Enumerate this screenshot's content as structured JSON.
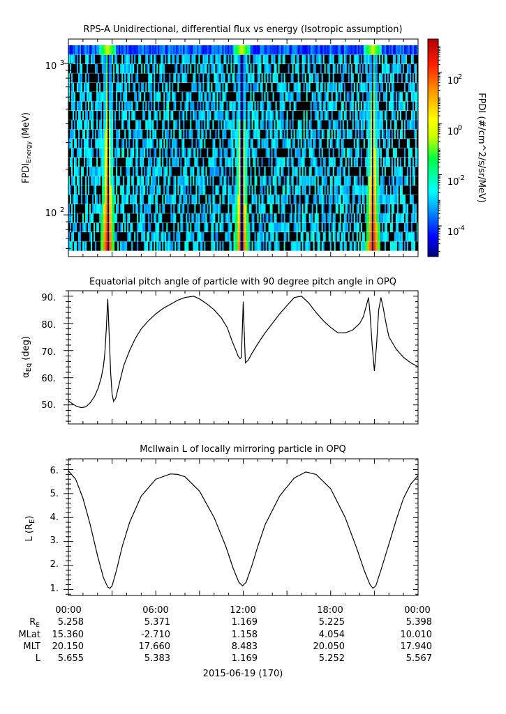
{
  "panel1": {
    "title": "RPS-A Unidirectional, differential flux vs energy (Isotropic assumption)",
    "ylabel_main": "FPDI",
    "ylabel_sub": "Energy",
    "ylabel_unit": "(MeV)",
    "ytick_labels": [
      {
        "base": "10",
        "exp": "3",
        "value": 1000
      },
      {
        "base": "10",
        "exp": "2",
        "value": 100
      }
    ],
    "colorbar": {
      "label": "FPDI (#/cm^2/s/sr/MeV)",
      "tick_labels": [
        {
          "base": "10",
          "exp": "2",
          "value": 100
        },
        {
          "base": "10",
          "exp": "0",
          "value": 1
        },
        {
          "base": "10",
          "exp": "-2",
          "value": 0.01
        },
        {
          "base": "10",
          "exp": "-4",
          "value": 0.0001
        }
      ],
      "colors": [
        "#000080",
        "#0000ff",
        "#00a0ff",
        "#00ffff",
        "#00ff40",
        "#c8ff00",
        "#ffff00",
        "#ffa000",
        "#ff2000",
        "#b00000"
      ]
    }
  },
  "panel2": {
    "title": "Equatorial pitch angle of particle with 90 degree pitch angle in OPQ",
    "ylabel_main": "α",
    "ylabel_sub": "Eq",
    "ylabel_unit": "(deg)",
    "ytick_labels": [
      "90.",
      "80.",
      "70.",
      "60.",
      "50."
    ]
  },
  "panel3": {
    "title": "McIlwain L of locally mirroring particle in OPQ",
    "ylabel_main": "L (R",
    "ylabel_sub": "E",
    "ylabel_close": ")",
    "ytick_labels": [
      "6.",
      "5.",
      "4.",
      "3.",
      "2.",
      "1."
    ]
  },
  "xaxis": {
    "tick_labels": [
      "00:00",
      "06:00",
      "12:00",
      "18:00",
      "00:00"
    ],
    "date_label": "2015-06-19 (170)"
  },
  "ephemeris": {
    "rows": [
      {
        "name": "R",
        "sub": "E",
        "values": [
          "5.258",
          "5.371",
          "1.169",
          "5.225",
          "5.398"
        ]
      },
      {
        "name": "MLat",
        "sub": "",
        "values": [
          "15.360",
          "-2.710",
          "1.158",
          "4.054",
          "10.010"
        ]
      },
      {
        "name": "MLT",
        "sub": "",
        "values": [
          "20.150",
          "17.660",
          "8.483",
          "20.050",
          "17.940"
        ]
      },
      {
        "name": "L",
        "sub": "",
        "values": [
          "5.655",
          "5.383",
          "1.169",
          "5.252",
          "5.567"
        ]
      }
    ]
  },
  "chart_data": [
    {
      "type": "heatmap",
      "title": "RPS-A Unidirectional, differential flux vs energy (Isotropic assumption)",
      "xlabel": "",
      "ylabel": "FPDI Energy (MeV)",
      "y_scale": "log",
      "ylim": [
        53,
        1450
      ],
      "xlim_hours": [
        0,
        24
      ],
      "colorbar_label": "FPDI (#/cm^2/s/sr/MeV)",
      "colorbar_range_log10": [
        -5.2,
        3.3
      ],
      "perigee_hours": [
        2.7,
        11.9,
        20.9
      ],
      "bands": [
        {
          "center_hours": 2.7,
          "peak_log10_flux": 2.5
        },
        {
          "center_hours": 11.9,
          "peak_log10_flux": 2.3
        },
        {
          "center_hours": 20.9,
          "peak_log10_flux": 2.5
        }
      ]
    },
    {
      "type": "line",
      "title": "Equatorial pitch angle of particle with 90 degree pitch angle in OPQ",
      "ylabel": "αEq (deg)",
      "ylim": [
        43,
        92
      ],
      "xlim_hours": [
        0,
        24
      ],
      "series": [
        {
          "x": [
            0,
            0.3,
            0.6,
            0.9,
            1.2,
            1.5,
            1.8,
            2.05,
            2.25,
            2.4,
            2.5,
            2.6,
            2.7,
            2.8,
            2.9,
            3.0,
            3.1,
            3.25,
            3.5,
            3.8,
            4.2,
            4.6,
            5.0,
            5.5,
            6.0,
            6.5,
            7.0,
            7.5,
            8.0,
            8.6,
            9.0,
            9.5,
            10.0,
            10.5,
            10.9,
            11.2,
            11.5,
            11.65,
            11.78,
            11.87,
            11.95,
            12.0,
            12.05,
            12.15,
            12.35,
            12.6,
            13.0,
            13.5,
            14.0,
            14.5,
            15.0,
            15.5,
            16.0,
            16.5,
            17.0,
            17.5,
            18.0,
            18.5,
            19.0,
            19.5,
            20.0,
            20.25,
            20.45,
            20.6,
            20.7,
            20.85,
            21.0,
            21.15,
            21.3,
            21.45,
            21.6,
            21.8,
            22.0,
            22.5,
            23.0,
            23.5,
            24.0
          ],
          "y": [
            51.5,
            50.3,
            49.4,
            49.0,
            49.3,
            50.8,
            53.2,
            56.3,
            60.0,
            64.0,
            69.0,
            78.0,
            89.0,
            76.0,
            62.0,
            54.0,
            51.3,
            52.5,
            58.0,
            64.5,
            70.0,
            74.5,
            78.0,
            81.0,
            83.5,
            85.5,
            87.0,
            88.5,
            89.5,
            90.0,
            89.0,
            87.2,
            85.0,
            82.0,
            78.5,
            74.0,
            70.0,
            68.0,
            67.0,
            67.5,
            80.0,
            88.0,
            80.0,
            65.5,
            66.5,
            69.0,
            72.5,
            76.5,
            80.0,
            83.5,
            86.5,
            89.5,
            90.0,
            87.5,
            84.0,
            81.0,
            78.5,
            76.5,
            76.5,
            77.5,
            80.0,
            82.5,
            86.5,
            89.5,
            84.0,
            72.0,
            62.5,
            72.0,
            85.0,
            89.5,
            86.0,
            80.0,
            75.0,
            70.5,
            67.5,
            65.5,
            64.0
          ]
        }
      ]
    },
    {
      "type": "line",
      "title": "McIlwain L of locally mirroring particle in OPQ",
      "ylabel": "L (RE)",
      "ylim": [
        0.75,
        6.45
      ],
      "xlim_hours": [
        0,
        24
      ],
      "series": [
        {
          "x": [
            0,
            0.5,
            1.0,
            1.5,
            2.0,
            2.4,
            2.7,
            2.85,
            3.0,
            3.3,
            3.7,
            4.2,
            5.0,
            6.0,
            7.0,
            7.5,
            8.0,
            9.0,
            10.0,
            10.8,
            11.3,
            11.7,
            11.95,
            12.2,
            12.6,
            13.0,
            13.5,
            14.5,
            15.5,
            16.3,
            17.0,
            18.0,
            19.0,
            19.8,
            20.3,
            20.7,
            20.9,
            21.1,
            21.5,
            22.0,
            22.5,
            23.0,
            23.5,
            24.0
          ],
          "y": [
            5.95,
            5.6,
            4.8,
            3.7,
            2.4,
            1.5,
            1.1,
            1.05,
            1.15,
            1.8,
            2.8,
            3.8,
            4.9,
            5.6,
            5.82,
            5.8,
            5.7,
            5.1,
            4.0,
            2.8,
            1.9,
            1.3,
            1.15,
            1.3,
            2.0,
            2.8,
            3.7,
            4.9,
            5.65,
            5.9,
            5.8,
            5.2,
            4.0,
            2.7,
            1.8,
            1.2,
            1.05,
            1.15,
            1.9,
            2.9,
            3.9,
            4.8,
            5.4,
            5.75
          ]
        }
      ]
    }
  ]
}
